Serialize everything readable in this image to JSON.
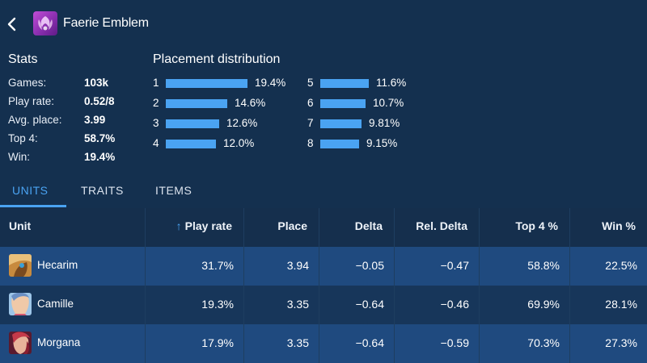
{
  "header": {
    "title": "Faerie Emblem"
  },
  "stats": {
    "title": "Stats",
    "rows": [
      {
        "label": "Games:",
        "value": "103k"
      },
      {
        "label": "Play rate:",
        "value": "0.52/8"
      },
      {
        "label": "Avg. place:",
        "value": "3.99"
      },
      {
        "label": "Top 4:",
        "value": "58.7%"
      },
      {
        "label": "Win:",
        "value": "19.4%"
      }
    ]
  },
  "distribution": {
    "title": "Placement distribution",
    "items": [
      {
        "rank": "1",
        "pct": "19.4%",
        "value": 19.4
      },
      {
        "rank": "2",
        "pct": "14.6%",
        "value": 14.6
      },
      {
        "rank": "3",
        "pct": "12.6%",
        "value": 12.6
      },
      {
        "rank": "4",
        "pct": "12.0%",
        "value": 12.0
      },
      {
        "rank": "5",
        "pct": "11.6%",
        "value": 11.6
      },
      {
        "rank": "6",
        "pct": "10.7%",
        "value": 10.7
      },
      {
        "rank": "7",
        "pct": "9.81%",
        "value": 9.81
      },
      {
        "rank": "8",
        "pct": "9.15%",
        "value": 9.15
      }
    ]
  },
  "tabs": [
    {
      "label": "UNITS",
      "active": true
    },
    {
      "label": "TRAITS",
      "active": false
    },
    {
      "label": "ITEMS",
      "active": false
    }
  ],
  "table": {
    "sort_arrow": "↑",
    "columns": [
      "Unit",
      "Play rate",
      "Place",
      "Delta",
      "Rel. Delta",
      "Top 4 %",
      "Win %"
    ],
    "rows": [
      {
        "unit": "Hecarim",
        "play_rate": "31.7%",
        "place": "3.94",
        "delta": "−0.05",
        "rel_delta": "−0.47",
        "top4": "58.8%",
        "win": "22.5%"
      },
      {
        "unit": "Camille",
        "play_rate": "19.3%",
        "place": "3.35",
        "delta": "−0.64",
        "rel_delta": "−0.46",
        "top4": "69.9%",
        "win": "28.1%"
      },
      {
        "unit": "Morgana",
        "play_rate": "17.9%",
        "place": "3.35",
        "delta": "−0.64",
        "rel_delta": "−0.59",
        "top4": "70.3%",
        "win": "27.3%"
      }
    ]
  },
  "colors": {
    "background": "#14304f",
    "accent": "#4aa3f2",
    "row_highlight": "#1f4a7f"
  }
}
